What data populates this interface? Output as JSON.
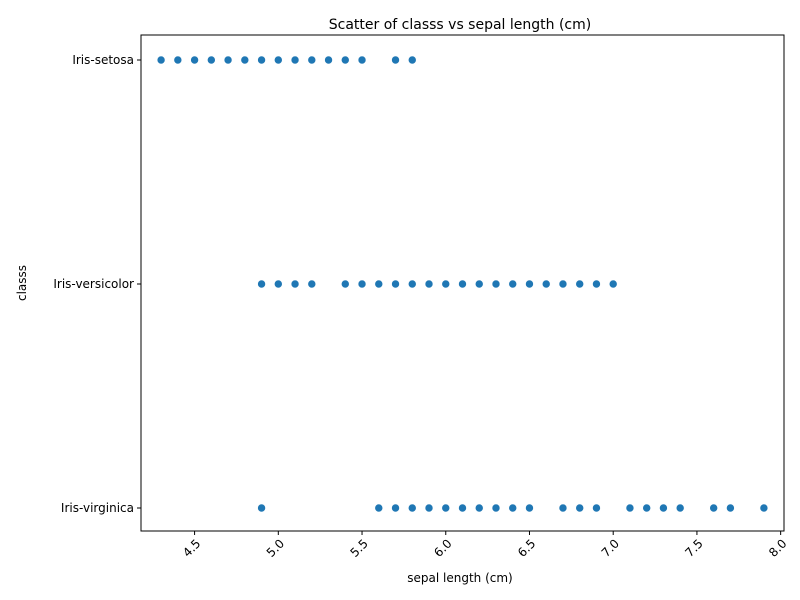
{
  "chart_data": {
    "type": "scatter",
    "title": "Scatter of classs vs sepal length (cm)",
    "xlabel": "sepal length (cm)",
    "ylabel": "classs",
    "xlim": [
      4.18,
      8.02
    ],
    "xticks": [
      "4.5",
      "5.0",
      "5.5",
      "6.0",
      "6.5",
      "7.0",
      "7.5",
      "8.0"
    ],
    "xtick_values": [
      4.5,
      5.0,
      5.5,
      6.0,
      6.5,
      7.0,
      7.5,
      8.0
    ],
    "categories": [
      "Iris-setosa",
      "Iris-versicolor",
      "Iris-virginica"
    ],
    "grid": false,
    "point_color": "#1f77b4",
    "series": [
      {
        "category": "Iris-setosa",
        "x": [
          4.3,
          4.4,
          4.5,
          4.6,
          4.7,
          4.8,
          4.9,
          5.0,
          5.1,
          5.2,
          5.3,
          5.4,
          5.5,
          5.7,
          5.8
        ]
      },
      {
        "category": "Iris-versicolor",
        "x": [
          4.9,
          5.0,
          5.1,
          5.2,
          5.4,
          5.5,
          5.6,
          5.7,
          5.8,
          5.9,
          6.0,
          6.1,
          6.2,
          6.3,
          6.4,
          6.5,
          6.6,
          6.7,
          6.8,
          6.9,
          7.0
        ]
      },
      {
        "category": "Iris-virginica",
        "x": [
          4.9,
          5.6,
          5.7,
          5.8,
          5.9,
          6.0,
          6.1,
          6.2,
          6.3,
          6.4,
          6.5,
          6.7,
          6.8,
          6.9,
          7.1,
          7.2,
          7.3,
          7.4,
          7.6,
          7.7,
          7.9
        ]
      }
    ]
  }
}
